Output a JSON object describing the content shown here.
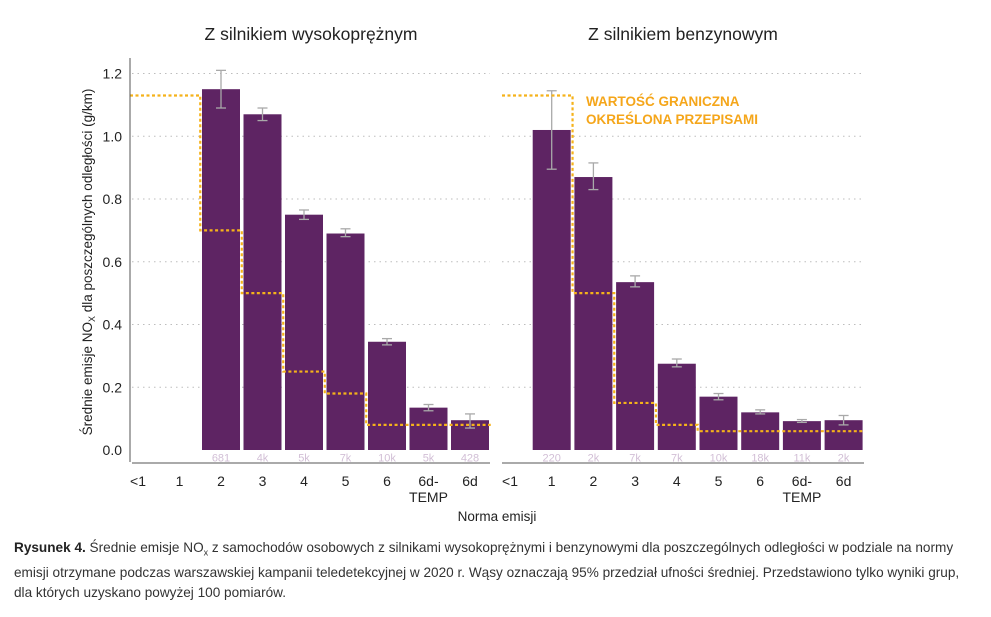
{
  "chart_data": [
    {
      "type": "bar",
      "title": "Z silnikiem wysokoprężnym",
      "ylabel": "Średnie emisje NOX dla poszczególnych odległości (g/km)",
      "ylabel_main": "Średnie emisje NO",
      "ylabel_sub": "X",
      "ylabel_tail": " dla poszczególnych odległości (g/km)",
      "xlabel": "Norma emisji",
      "ylim": [
        0,
        1.25
      ],
      "yticks": [
        "0.0",
        "0.2",
        "0.4",
        "0.6",
        "0.8",
        "1.0",
        "1.2"
      ],
      "ytick_values": [
        0,
        0.2,
        0.4,
        0.6,
        0.8,
        1.0,
        1.2
      ],
      "categories": [
        "<1",
        "1",
        "2",
        "3",
        "4",
        "5",
        "6",
        "6d-TEMP",
        "6d"
      ],
      "category_lines": [
        [
          "<1"
        ],
        [
          "1"
        ],
        [
          "2"
        ],
        [
          "3"
        ],
        [
          "4"
        ],
        [
          "5"
        ],
        [
          "6"
        ],
        [
          "6d-",
          "TEMP"
        ],
        [
          "6d"
        ]
      ],
      "values": [
        null,
        null,
        1.15,
        1.07,
        0.75,
        0.69,
        0.345,
        0.135,
        0.095
      ],
      "err_low": [
        null,
        null,
        1.09,
        1.05,
        0.735,
        0.68,
        0.335,
        0.125,
        0.07
      ],
      "err_high": [
        null,
        null,
        1.21,
        1.09,
        0.765,
        0.705,
        0.355,
        0.145,
        0.115
      ],
      "counts": [
        "",
        "",
        "681",
        "4k",
        "5k",
        "7k",
        "10k",
        "5k",
        "428"
      ],
      "limits": [
        1.13,
        1.13,
        0.7,
        0.5,
        0.25,
        0.18,
        0.08,
        0.08,
        0.08
      ]
    },
    {
      "type": "bar",
      "title": "Z silnikiem benzynowym",
      "ylim": [
        0,
        1.25
      ],
      "categories": [
        "<1",
        "1",
        "2",
        "3",
        "4",
        "5",
        "6",
        "6d-TEMP",
        "6d"
      ],
      "category_lines": [
        [
          "<1"
        ],
        [
          "1"
        ],
        [
          "2"
        ],
        [
          "3"
        ],
        [
          "4"
        ],
        [
          "5"
        ],
        [
          "6"
        ],
        [
          "6d-",
          "TEMP"
        ],
        [
          "6d"
        ]
      ],
      "values": [
        null,
        1.02,
        0.87,
        0.535,
        0.275,
        0.17,
        0.12,
        0.092,
        0.095
      ],
      "err_low": [
        null,
        0.895,
        0.83,
        0.52,
        0.265,
        0.16,
        0.115,
        0.088,
        0.08
      ],
      "err_high": [
        null,
        1.145,
        0.915,
        0.555,
        0.29,
        0.18,
        0.128,
        0.097,
        0.11
      ],
      "counts": [
        "",
        "220",
        "2k",
        "7k",
        "7k",
        "10k",
        "18k",
        "11k",
        "2k"
      ],
      "limits": [
        1.13,
        1.13,
        0.5,
        0.15,
        0.08,
        0.06,
        0.06,
        0.06,
        0.06
      ],
      "annotation": [
        "WARTOŚĆ GRANICZNA",
        "OKREŚLONA PRZEPISAMI"
      ]
    }
  ],
  "colors": {
    "bar": "#5e2463",
    "limit": "#f5b21a",
    "annotation": "#f5a61a",
    "count_text": "#d2bfd6",
    "grid": "#bdbdbd",
    "errorbar": "#a9a9a9"
  },
  "caption": {
    "label": "Rysunek 4.",
    "text_a": " Średnie emisje NO",
    "sub": "x",
    "text_b": " z samochodów osobowych z silnikami wysokoprężnymi i benzynowymi dla poszczególnych odległości w podziale na normy emisji otrzymane podczas warszawskiej kampanii teledetekcyjnej w 2020 r. Wąsy oznaczają 95% przedział ufności średniej. Przedstawiono tylko wyniki grup, dla których uzyskano powyżej 100 pomiarów."
  }
}
